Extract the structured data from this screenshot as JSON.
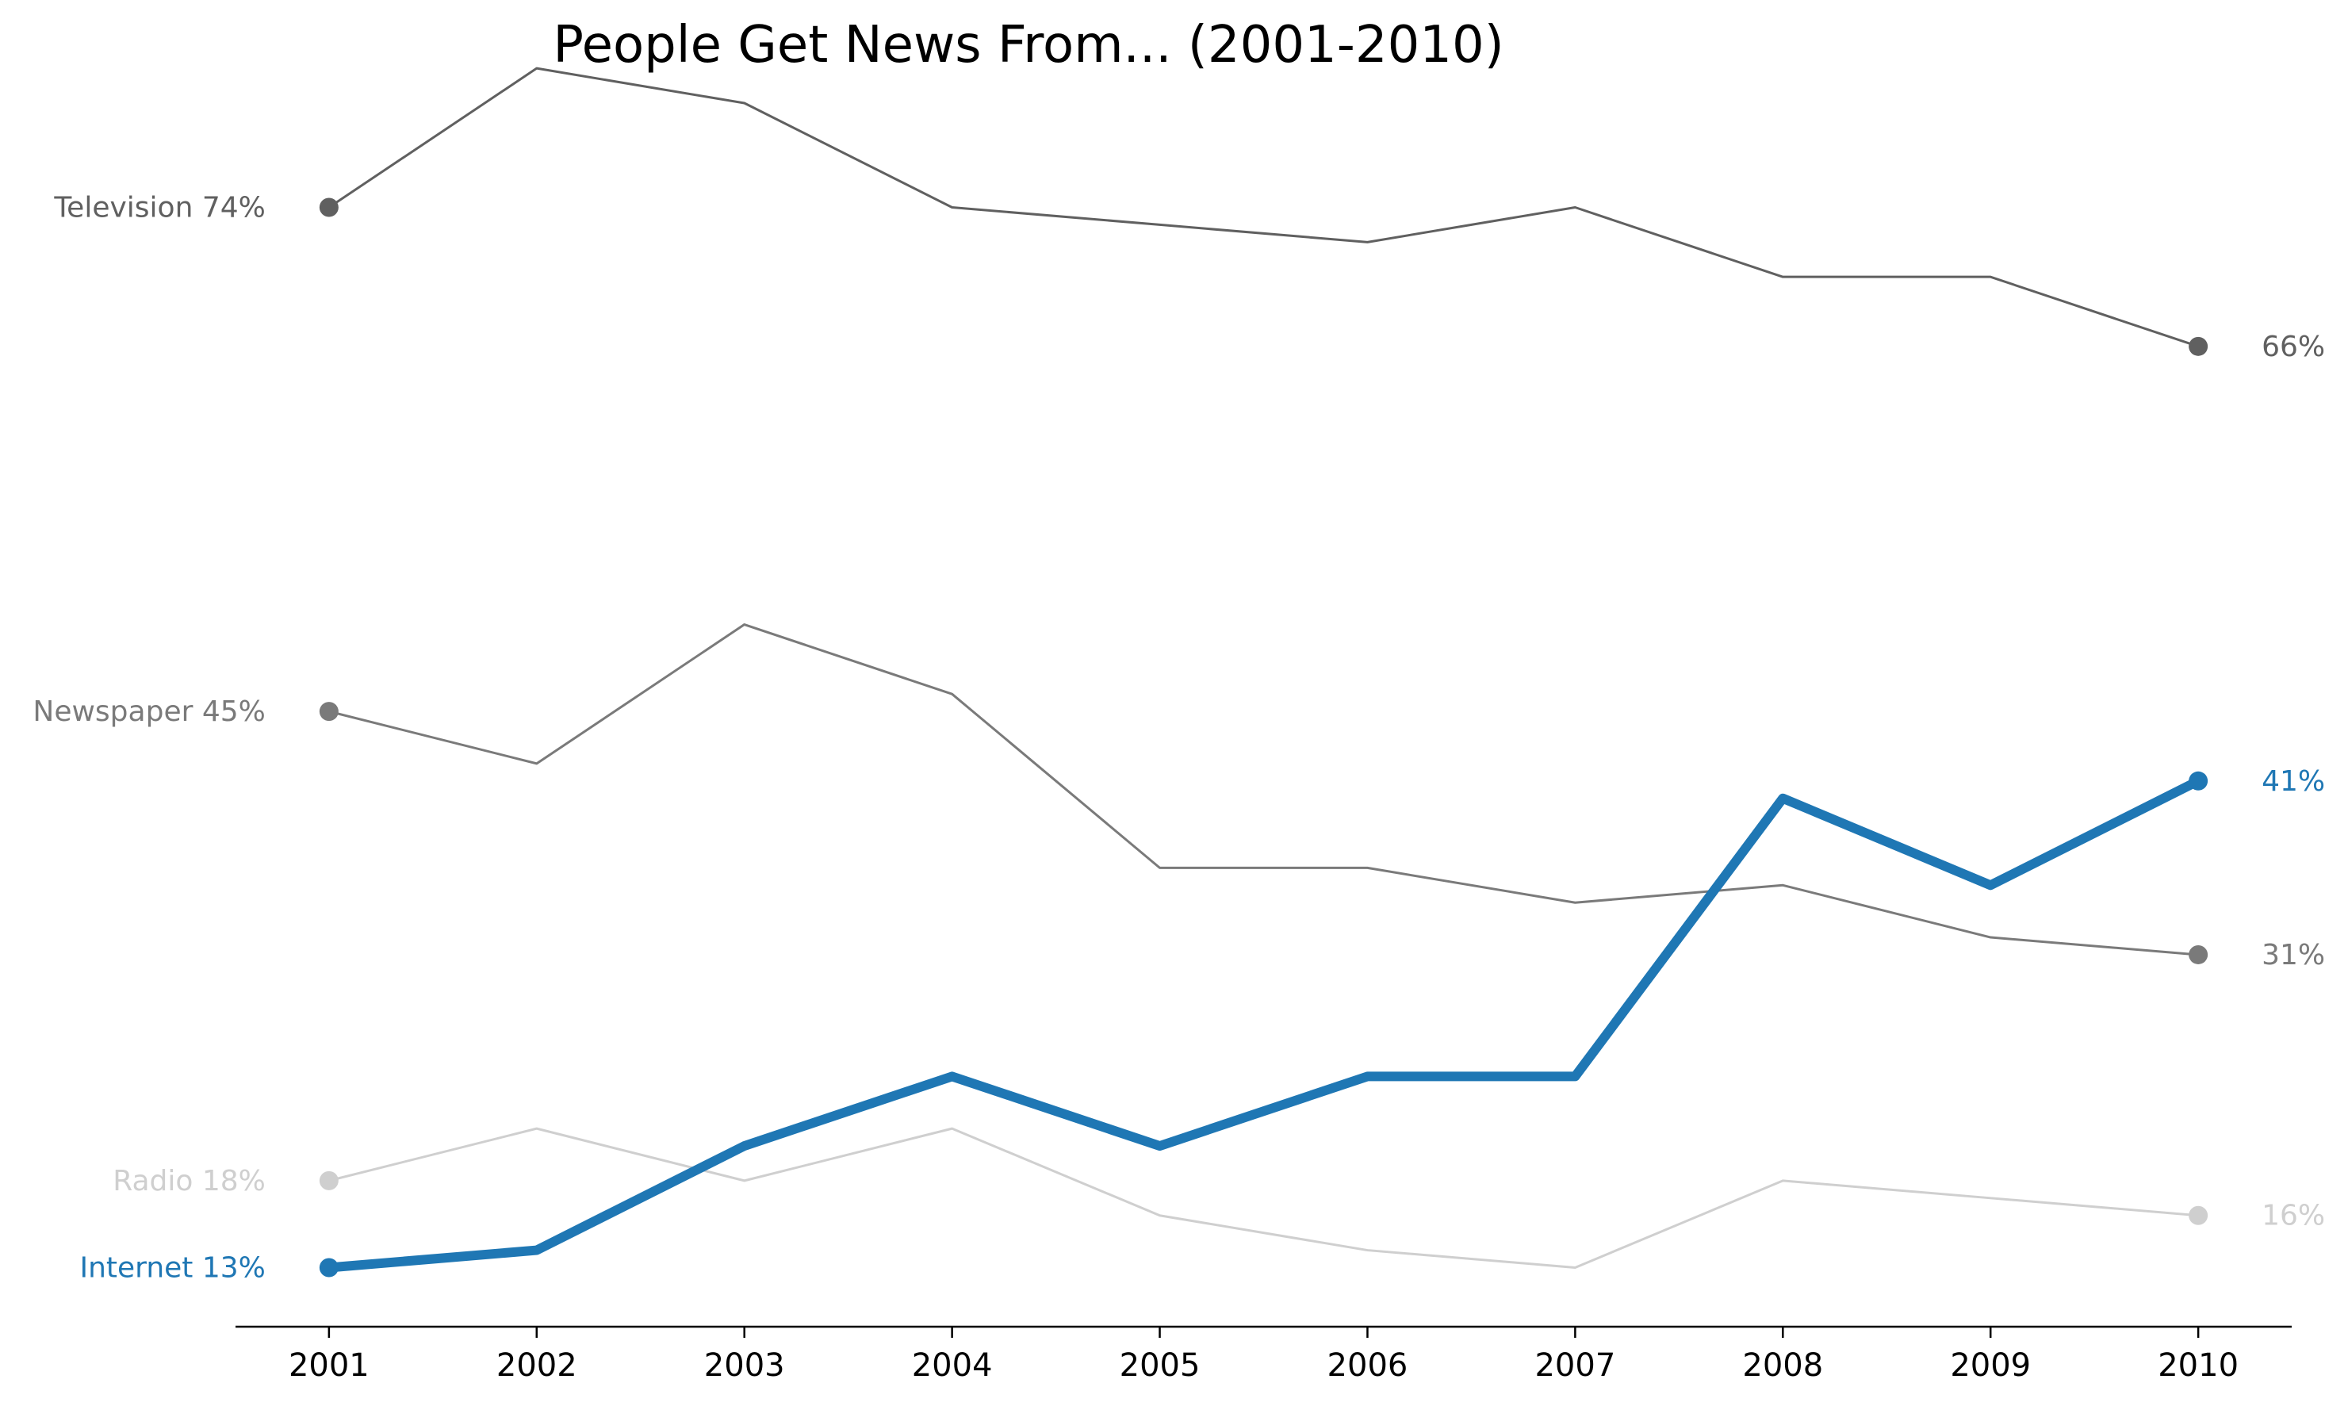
{
  "chart_data": {
    "type": "line",
    "title": "People Get News From... (2001-2010)",
    "xlabel": "",
    "ylabel": "",
    "x": [
      2001,
      2002,
      2003,
      2004,
      2005,
      2006,
      2007,
      2008,
      2009,
      2010
    ],
    "x_tick_labels": [
      "2001",
      "2002",
      "2003",
      "2004",
      "2005",
      "2006",
      "2007",
      "2008",
      "2009",
      "2010"
    ],
    "xlim": [
      2000.55,
      2010.45
    ],
    "ylim": [
      9.6,
      80
    ],
    "y_axis_visible": false,
    "grid": false,
    "legend": "none",
    "series": [
      {
        "name": "Television",
        "start_label": "Television 74%",
        "end_label": "66%",
        "color": "#606060",
        "emphasis": false,
        "values": [
          74,
          82,
          80,
          74,
          73,
          72,
          74,
          70,
          70,
          66
        ]
      },
      {
        "name": "Newspaper",
        "start_label": "Newspaper 45%",
        "end_label": "31%",
        "color": "#7a7a7a",
        "emphasis": false,
        "values": [
          45,
          42,
          50,
          46,
          36,
          36,
          34,
          35,
          32,
          31
        ]
      },
      {
        "name": "Radio",
        "start_label": "Radio 18%",
        "end_label": "16%",
        "color": "#cfcfcf",
        "emphasis": false,
        "values": [
          18,
          21,
          18,
          21,
          16,
          14,
          13,
          18,
          17,
          16
        ]
      },
      {
        "name": "Internet",
        "start_label": "Internet 13%",
        "end_label": "41%",
        "color": "#1f77b4",
        "emphasis": true,
        "values": [
          13,
          14,
          20,
          24,
          20,
          24,
          24,
          40,
          35,
          41
        ]
      }
    ]
  }
}
